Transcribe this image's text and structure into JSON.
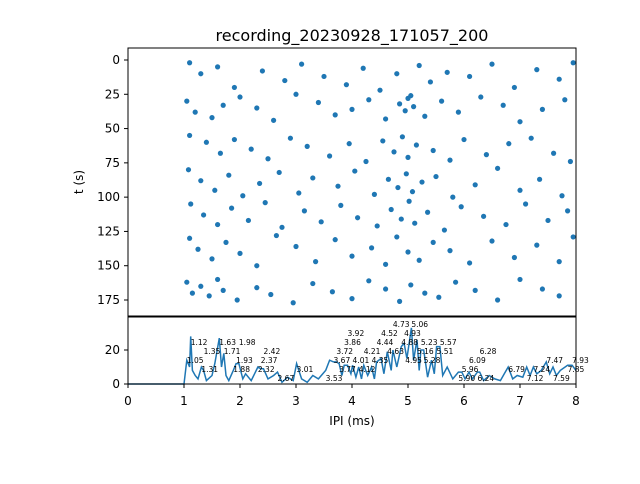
{
  "chart_data": [
    {
      "type": "scatter",
      "title": "recording_20230928_171057_200",
      "xlabel": "",
      "ylabel": "t (s)",
      "xlim": [
        0,
        8
      ],
      "ylim": [
        185,
        -9
      ],
      "yticks": [
        "0",
        "25",
        "50",
        "75",
        "100",
        "125",
        "150",
        "175"
      ],
      "ytick_values": [
        0,
        25,
        50,
        75,
        100,
        125,
        150,
        175
      ],
      "color": "#1f77b4",
      "points": [
        [
          1.1,
          2
        ],
        [
          1.3,
          10
        ],
        [
          1.6,
          5
        ],
        [
          1.9,
          20
        ],
        [
          2.4,
          8
        ],
        [
          2.8,
          15
        ],
        [
          3.1,
          3
        ],
        [
          3.5,
          12
        ],
        [
          3.9,
          18
        ],
        [
          4.2,
          6
        ],
        [
          4.5,
          22
        ],
        [
          4.8,
          10
        ],
        [
          5.0,
          28
        ],
        [
          5.2,
          4
        ],
        [
          5.4,
          16
        ],
        [
          5.7,
          9
        ],
        [
          6.1,
          12
        ],
        [
          6.5,
          3
        ],
        [
          6.9,
          20
        ],
        [
          7.3,
          7
        ],
        [
          7.7,
          14
        ],
        [
          7.95,
          2
        ],
        [
          1.05,
          30
        ],
        [
          1.2,
          38
        ],
        [
          1.5,
          42
        ],
        [
          1.7,
          33
        ],
        [
          2.0,
          27
        ],
        [
          2.3,
          35
        ],
        [
          2.6,
          44
        ],
        [
          3.0,
          25
        ],
        [
          3.4,
          31
        ],
        [
          3.7,
          40
        ],
        [
          4.0,
          36
        ],
        [
          4.3,
          29
        ],
        [
          4.6,
          43
        ],
        [
          4.85,
          32
        ],
        [
          4.95,
          37
        ],
        [
          5.05,
          26
        ],
        [
          5.1,
          34
        ],
        [
          5.3,
          41
        ],
        [
          5.6,
          30
        ],
        [
          5.9,
          38
        ],
        [
          6.3,
          27
        ],
        [
          6.7,
          33
        ],
        [
          7.0,
          45
        ],
        [
          7.4,
          36
        ],
        [
          7.8,
          29
        ],
        [
          1.1,
          55
        ],
        [
          1.4,
          60
        ],
        [
          1.65,
          68
        ],
        [
          1.9,
          58
        ],
        [
          2.2,
          65
        ],
        [
          2.5,
          72
        ],
        [
          2.9,
          57
        ],
        [
          3.2,
          63
        ],
        [
          3.6,
          70
        ],
        [
          3.95,
          61
        ],
        [
          4.25,
          74
        ],
        [
          4.55,
          59
        ],
        [
          4.75,
          67
        ],
        [
          4.9,
          56
        ],
        [
          5.0,
          71
        ],
        [
          5.15,
          62
        ],
        [
          5.45,
          66
        ],
        [
          5.75,
          73
        ],
        [
          6.0,
          58
        ],
        [
          6.4,
          69
        ],
        [
          6.8,
          61
        ],
        [
          7.2,
          57
        ],
        [
          7.6,
          68
        ],
        [
          7.9,
          74
        ],
        [
          1.08,
          80
        ],
        [
          1.3,
          88
        ],
        [
          1.55,
          95
        ],
        [
          1.8,
          84
        ],
        [
          2.05,
          99
        ],
        [
          2.35,
          90
        ],
        [
          2.7,
          82
        ],
        [
          3.05,
          97
        ],
        [
          3.3,
          86
        ],
        [
          3.75,
          92
        ],
        [
          4.05,
          81
        ],
        [
          4.4,
          98
        ],
        [
          4.65,
          87
        ],
        [
          4.82,
          93
        ],
        [
          4.97,
          83
        ],
        [
          5.08,
          96
        ],
        [
          5.25,
          89
        ],
        [
          5.5,
          85
        ],
        [
          5.8,
          100
        ],
        [
          6.2,
          91
        ],
        [
          6.6,
          79
        ],
        [
          7.0,
          95
        ],
        [
          7.35,
          87
        ],
        [
          7.75,
          99
        ],
        [
          1.12,
          105
        ],
        [
          1.35,
          113
        ],
        [
          1.6,
          120
        ],
        [
          1.85,
          108
        ],
        [
          2.15,
          117
        ],
        [
          2.45,
          104
        ],
        [
          2.75,
          122
        ],
        [
          3.15,
          110
        ],
        [
          3.45,
          118
        ],
        [
          3.8,
          106
        ],
        [
          4.1,
          115
        ],
        [
          4.45,
          121
        ],
        [
          4.7,
          109
        ],
        [
          4.88,
          116
        ],
        [
          5.02,
          103
        ],
        [
          5.12,
          119
        ],
        [
          5.35,
          111
        ],
        [
          5.65,
          124
        ],
        [
          5.95,
          107
        ],
        [
          6.35,
          114
        ],
        [
          6.75,
          120
        ],
        [
          7.1,
          105
        ],
        [
          7.5,
          117
        ],
        [
          7.85,
          110
        ],
        [
          1.1,
          130
        ],
        [
          1.25,
          138
        ],
        [
          1.5,
          145
        ],
        [
          1.75,
          133
        ],
        [
          2.0,
          141
        ],
        [
          2.3,
          150
        ],
        [
          2.65,
          128
        ],
        [
          3.0,
          136
        ],
        [
          3.35,
          147
        ],
        [
          3.7,
          131
        ],
        [
          4.0,
          143
        ],
        [
          4.35,
          137
        ],
        [
          4.6,
          149
        ],
        [
          4.8,
          129
        ],
        [
          5.0,
          140
        ],
        [
          5.2,
          146
        ],
        [
          5.45,
          133
        ],
        [
          5.75,
          139
        ],
        [
          6.1,
          148
        ],
        [
          6.5,
          132
        ],
        [
          6.9,
          144
        ],
        [
          7.3,
          135
        ],
        [
          7.7,
          147
        ],
        [
          7.95,
          129
        ],
        [
          1.05,
          162
        ],
        [
          1.15,
          170
        ],
        [
          1.3,
          165
        ],
        [
          1.45,
          172
        ],
        [
          1.6,
          160
        ],
        [
          1.7,
          168
        ],
        [
          1.95,
          175
        ],
        [
          2.3,
          166
        ],
        [
          2.55,
          171
        ],
        [
          2.95,
          177
        ],
        [
          3.3,
          163
        ],
        [
          3.65,
          169
        ],
        [
          4.0,
          174
        ],
        [
          4.3,
          161
        ],
        [
          4.6,
          167
        ],
        [
          4.85,
          176
        ],
        [
          5.05,
          164
        ],
        [
          5.3,
          170
        ],
        [
          5.55,
          173
        ],
        [
          5.85,
          162
        ],
        [
          6.2,
          168
        ],
        [
          6.6,
          175
        ],
        [
          7.0,
          160
        ],
        [
          7.4,
          167
        ],
        [
          7.7,
          172
        ]
      ]
    },
    {
      "type": "line",
      "xlabel": "IPI (ms)",
      "ylabel": "",
      "xlim": [
        0,
        8
      ],
      "ylim": [
        0,
        39
      ],
      "xticks": [
        "0",
        "1",
        "2",
        "3",
        "4",
        "5",
        "6",
        "7",
        "8"
      ],
      "xtick_values": [
        0,
        1,
        2,
        3,
        4,
        5,
        6,
        7,
        8
      ],
      "yticks": [
        "0",
        "20"
      ],
      "ytick_values": [
        0,
        20
      ],
      "color": "#1f77b4",
      "x": [
        0,
        0.5,
        1.0,
        1.05,
        1.1,
        1.12,
        1.15,
        1.2,
        1.25,
        1.31,
        1.35,
        1.4,
        1.5,
        1.55,
        1.63,
        1.67,
        1.71,
        1.75,
        1.8,
        1.88,
        1.93,
        1.98,
        2.05,
        2.1,
        2.2,
        2.32,
        2.37,
        2.42,
        2.5,
        2.6,
        2.67,
        2.75,
        2.85,
        2.95,
        3.01,
        3.1,
        3.2,
        3.3,
        3.4,
        3.53,
        3.6,
        3.67,
        3.72,
        3.77,
        3.82,
        3.86,
        3.92,
        3.98,
        4.01,
        4.07,
        4.12,
        4.17,
        4.21,
        4.28,
        4.35,
        4.4,
        4.44,
        4.52,
        4.57,
        4.63,
        4.7,
        4.73,
        4.8,
        4.88,
        4.93,
        4.98,
        5.06,
        5.1,
        5.16,
        5.2,
        5.23,
        5.28,
        5.35,
        5.42,
        5.47,
        5.51,
        5.57,
        5.62,
        5.7,
        5.8,
        5.9,
        5.96,
        6.02,
        6.09,
        6.15,
        6.24,
        6.28,
        6.35,
        6.45,
        6.55,
        6.65,
        6.72,
        6.79,
        6.87,
        6.95,
        7.05,
        7.12,
        7.18,
        7.24,
        7.3,
        7.38,
        7.47,
        7.53,
        7.59,
        7.65,
        7.72,
        7.85,
        7.93,
        8.0
      ],
      "y": [
        0,
        0,
        0,
        14,
        10,
        28,
        8,
        5,
        3,
        10,
        8,
        2,
        5,
        12,
        27,
        10,
        18,
        5,
        2,
        8,
        12,
        12,
        3,
        6,
        2,
        10,
        9,
        9,
        3,
        5,
        7,
        1,
        4,
        2,
        12,
        3,
        1,
        5,
        3,
        8,
        14,
        13,
        13,
        12,
        5,
        11,
        11,
        6,
        11,
        4,
        10,
        3,
        11,
        5,
        10,
        3,
        13,
        15,
        6,
        19,
        8,
        20,
        10,
        22,
        24,
        15,
        33,
        14,
        26,
        8,
        20,
        20,
        4,
        14,
        6,
        22,
        22,
        5,
        10,
        3,
        7,
        7,
        3,
        7,
        3,
        7,
        7,
        2,
        5,
        3,
        2,
        6,
        10,
        3,
        5,
        4,
        10,
        5,
        10,
        6,
        8,
        13,
        6,
        10,
        5,
        8,
        11,
        11,
        8
      ],
      "peak_labels": [
        {
          "text": "1.05",
          "x": 1.05,
          "y": 14
        },
        {
          "text": "1.12",
          "x": 1.12,
          "y": 28
        },
        {
          "text": "1.31",
          "x": 1.31,
          "y": 10
        },
        {
          "text": "1.35",
          "x": 1.35,
          "y": 8
        },
        {
          "text": "1.63",
          "x": 1.63,
          "y": 27
        },
        {
          "text": "1.71",
          "x": 1.71,
          "y": 18
        },
        {
          "text": "1.88",
          "x": 1.88,
          "y": 8
        },
        {
          "text": "1.93",
          "x": 1.93,
          "y": 12
        },
        {
          "text": "1.98",
          "x": 1.98,
          "y": 12
        },
        {
          "text": "2.32",
          "x": 2.32,
          "y": 8
        },
        {
          "text": "2.37",
          "x": 2.37,
          "y": 8
        },
        {
          "text": "2.42",
          "x": 2.42,
          "y": 9
        },
        {
          "text": "2.67",
          "x": 2.67,
          "y": 7
        },
        {
          "text": "3.01",
          "x": 3.01,
          "y": 12
        },
        {
          "text": "3.53",
          "x": 3.53,
          "y": 7
        },
        {
          "text": "3.67",
          "x": 3.67,
          "y": 13
        },
        {
          "text": "3.72",
          "x": 3.72,
          "y": 13
        },
        {
          "text": "3.77",
          "x": 3.77,
          "y": 12
        },
        {
          "text": "3.86",
          "x": 3.86,
          "y": 11
        },
        {
          "text": "3.92",
          "x": 3.92,
          "y": 11
        },
        {
          "text": "4.01",
          "x": 4.01,
          "y": 11
        },
        {
          "text": "4.12",
          "x": 4.12,
          "y": 10
        },
        {
          "text": "4.21",
          "x": 4.21,
          "y": 11
        },
        {
          "text": "4.35",
          "x": 4.35,
          "y": 10
        },
        {
          "text": "4.44",
          "x": 4.44,
          "y": 13
        },
        {
          "text": "4.52",
          "x": 4.52,
          "y": 15
        },
        {
          "text": "4.63",
          "x": 4.63,
          "y": 17
        },
        {
          "text": "4.73",
          "x": 4.73,
          "y": 18
        },
        {
          "text": "4.88",
          "x": 4.88,
          "y": 20
        },
        {
          "text": "4.93",
          "x": 4.93,
          "y": 21
        },
        {
          "text": "4.95",
          "x": 4.95,
          "y": 24
        },
        {
          "text": "5.06",
          "x": 5.06,
          "y": 33
        },
        {
          "text": "5.16",
          "x": 5.16,
          "y": 24
        },
        {
          "text": "5.23",
          "x": 5.23,
          "y": 19
        },
        {
          "text": "5.28",
          "x": 5.28,
          "y": 17
        },
        {
          "text": "5.51",
          "x": 5.51,
          "y": 21
        },
        {
          "text": "5.57",
          "x": 5.57,
          "y": 21
        },
        {
          "text": "5.90",
          "x": 5.9,
          "y": 6
        },
        {
          "text": "5.96",
          "x": 5.96,
          "y": 6
        },
        {
          "text": "6.09",
          "x": 6.09,
          "y": 6
        },
        {
          "text": "6.24",
          "x": 6.24,
          "y": 6
        },
        {
          "text": "6.28",
          "x": 6.28,
          "y": 6
        },
        {
          "text": "6.79",
          "x": 6.79,
          "y": 9
        },
        {
          "text": "7.12",
          "x": 7.12,
          "y": 7
        },
        {
          "text": "7.24",
          "x": 7.24,
          "y": 9
        },
        {
          "text": "7.47",
          "x": 7.47,
          "y": 11
        },
        {
          "text": "7.59",
          "x": 7.59,
          "y": 7
        },
        {
          "text": "7.85",
          "x": 7.85,
          "y": 9
        },
        {
          "text": "7.93",
          "x": 7.93,
          "y": 9
        }
      ]
    }
  ]
}
